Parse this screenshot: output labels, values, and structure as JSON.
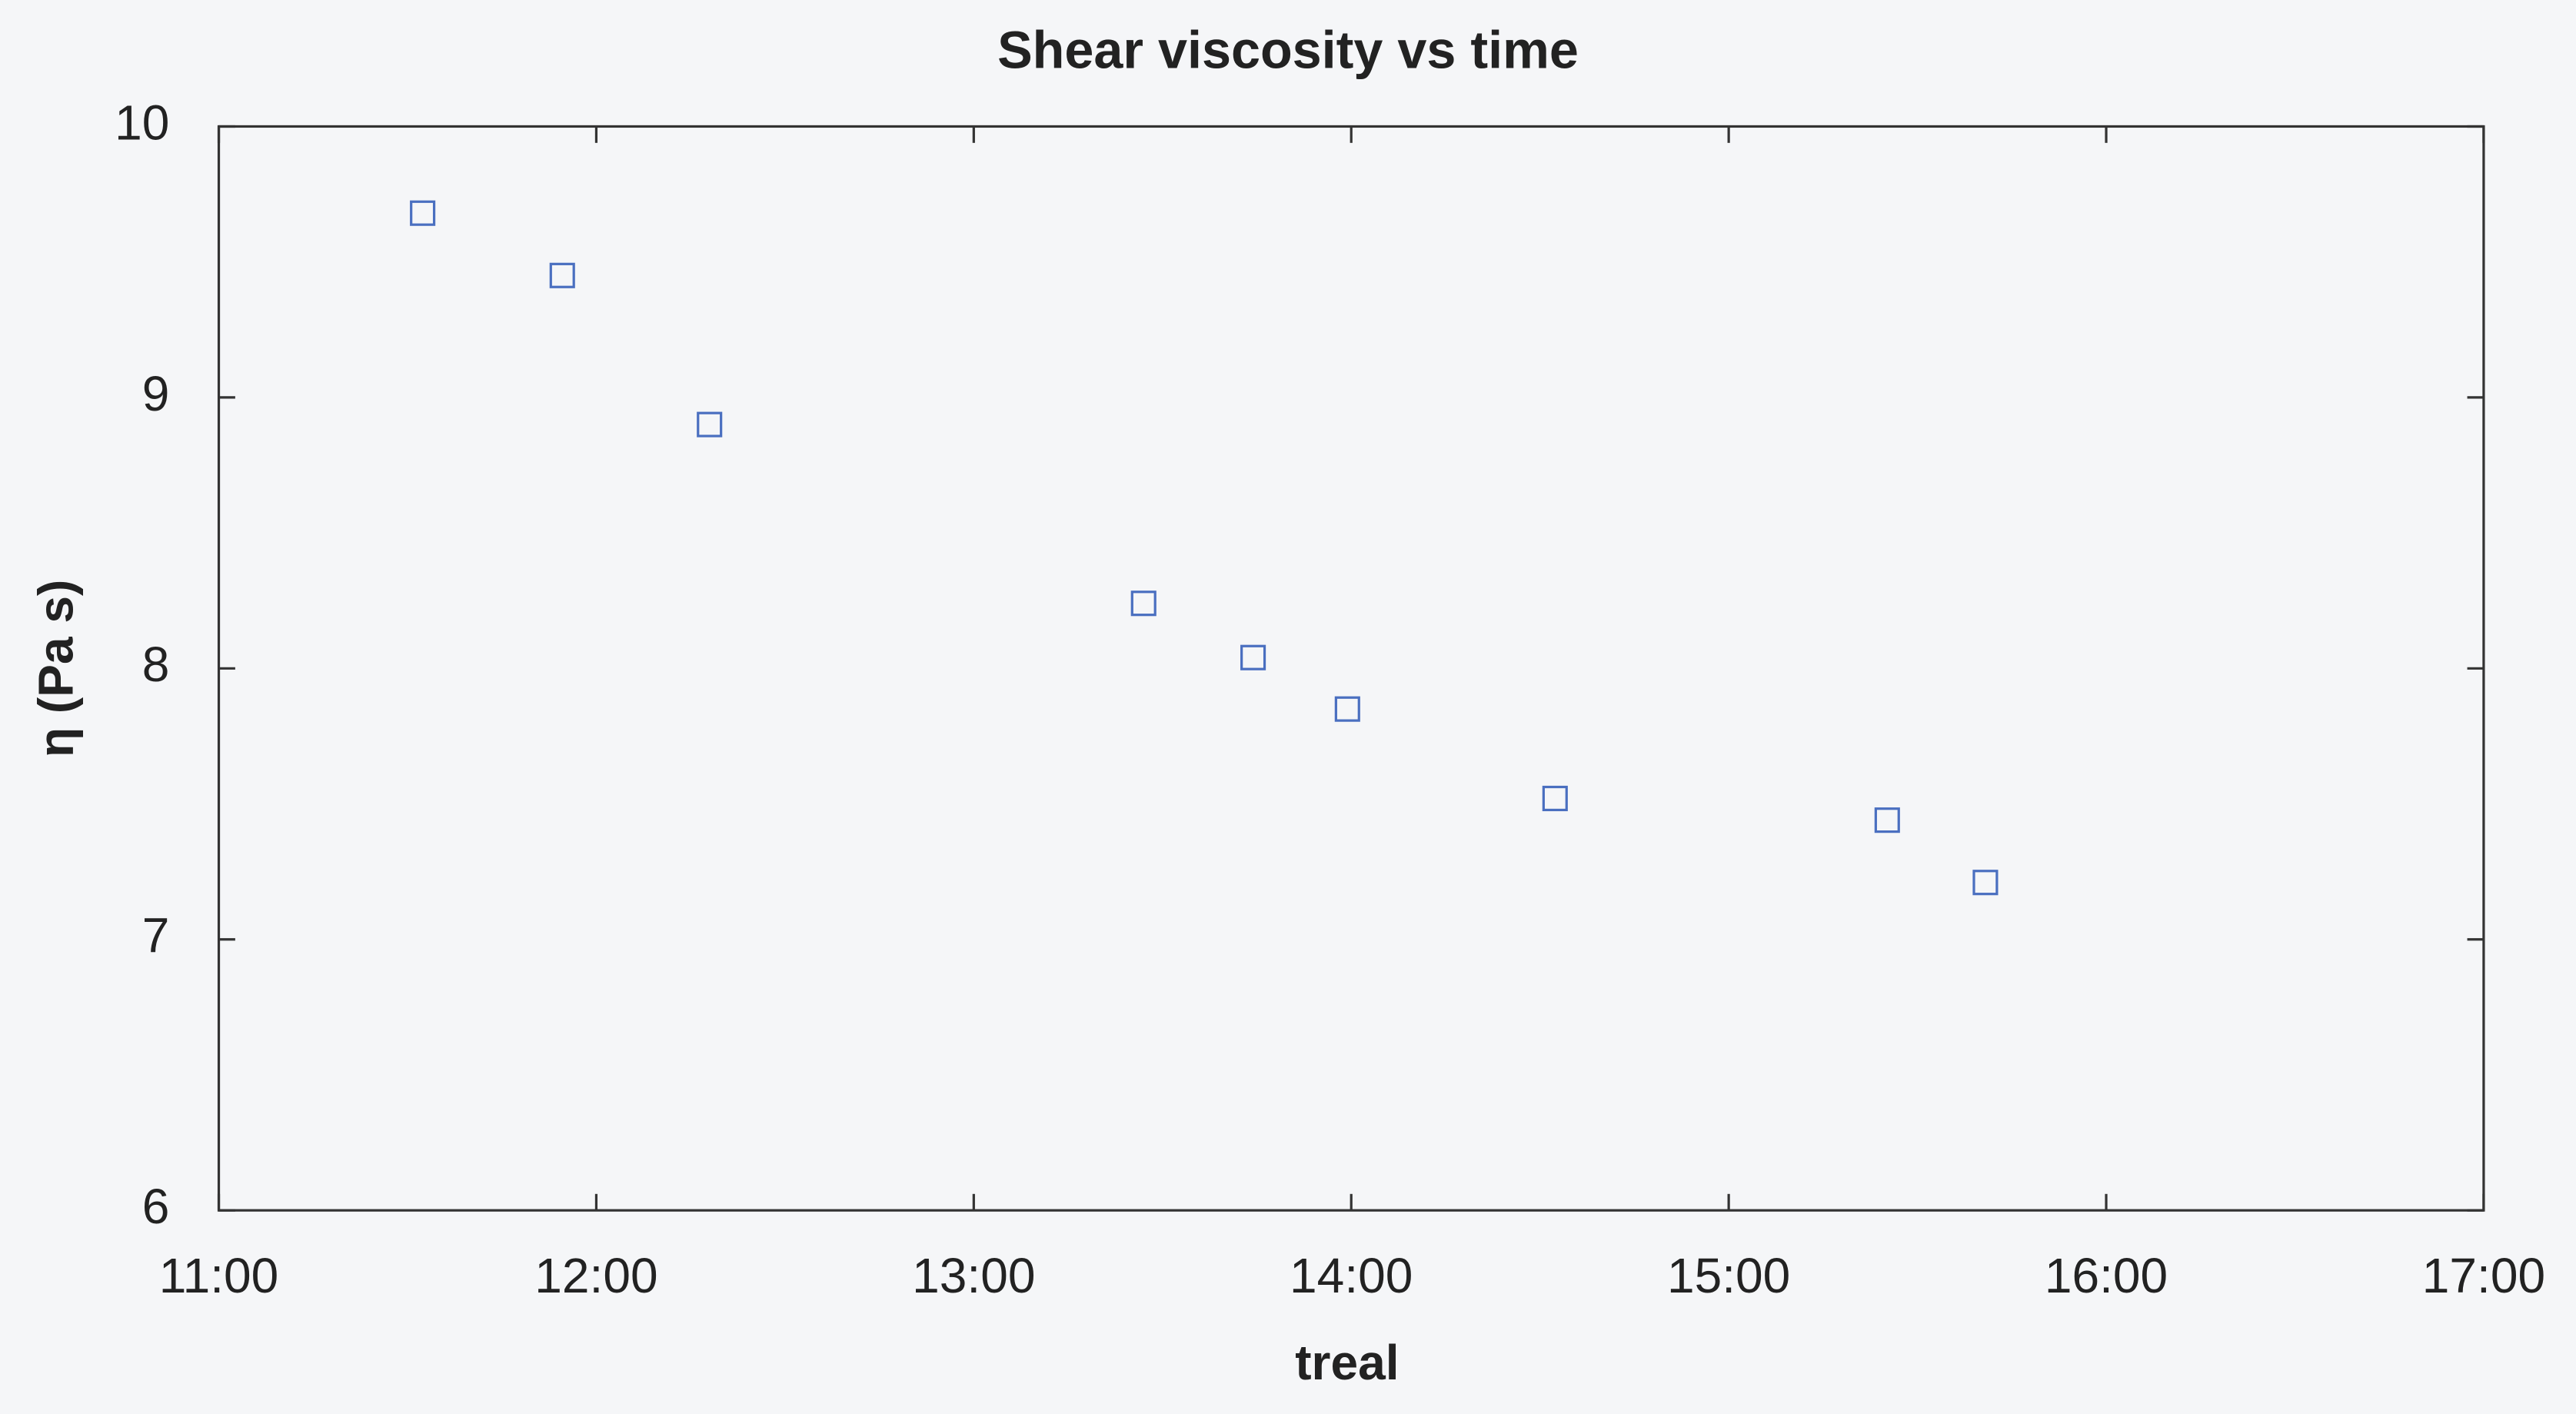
{
  "chart_data": {
    "type": "scatter",
    "title": "Shear viscosity vs time",
    "x_label": "treal",
    "y_label": "η (Pa s)",
    "x": [
      11.54,
      11.91,
      12.3,
      13.45,
      13.74,
      13.99,
      14.54,
      15.42,
      15.68
    ],
    "series": [
      {
        "name": "η",
        "color": "#4a6fc0",
        "values": [
          9.68,
          9.45,
          8.9,
          8.24,
          8.04,
          7.85,
          7.52,
          7.44,
          7.21
        ]
      }
    ],
    "xlim": [
      11,
      17
    ],
    "xticks": [
      {
        "value": 11,
        "label": "11:00"
      },
      {
        "value": 12,
        "label": "12:00"
      },
      {
        "value": 13,
        "label": "13:00"
      },
      {
        "value": 14,
        "label": "14:00"
      },
      {
        "value": 15,
        "label": "15:00"
      },
      {
        "value": 16,
        "label": "16:00"
      },
      {
        "value": 17,
        "label": "17:00"
      }
    ],
    "ylim": [
      6,
      10
    ],
    "yticks": [
      6,
      7,
      8,
      9,
      10
    ]
  }
}
